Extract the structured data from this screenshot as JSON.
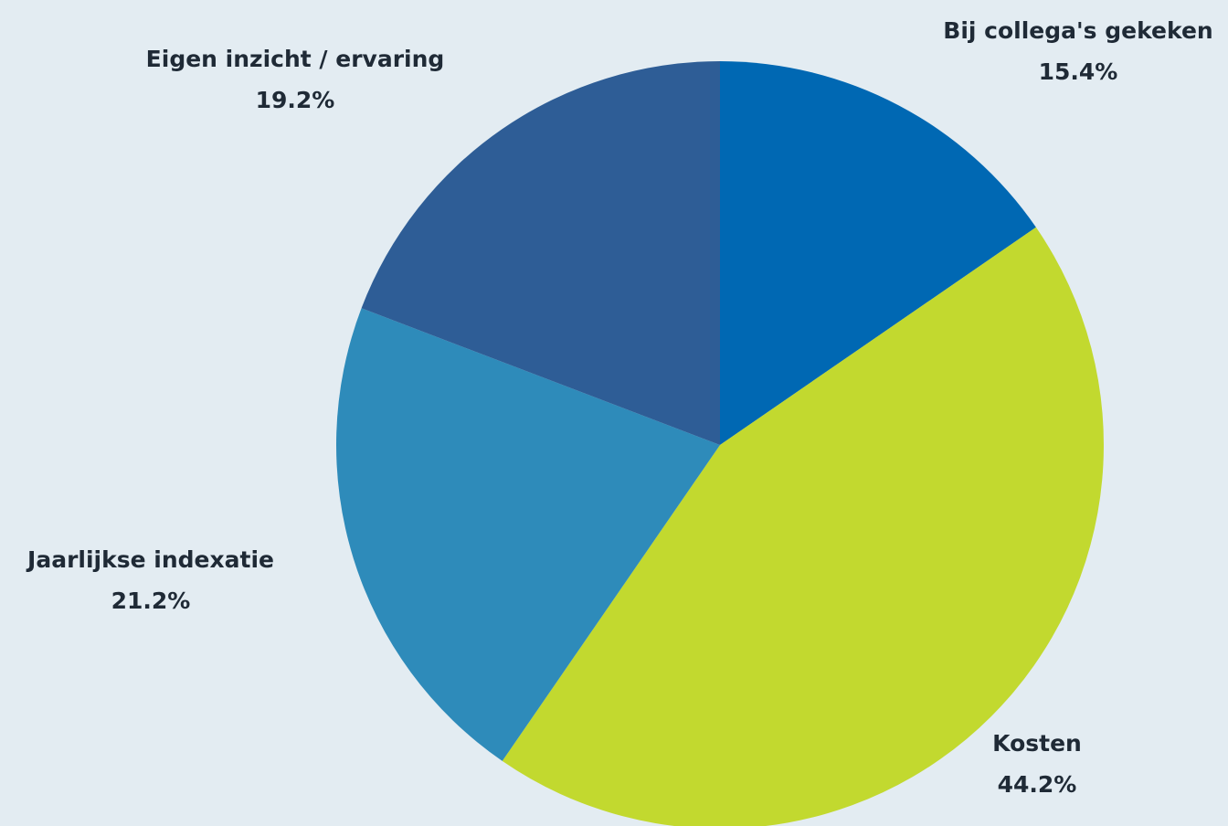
{
  "chart_data": {
    "type": "pie",
    "title": "",
    "slices": [
      {
        "label": "Bij collega's gekeken",
        "value": 15.4,
        "value_label": "15.4%",
        "color": "#0068b3"
      },
      {
        "label": "Kosten",
        "value": 44.2,
        "value_label": "44.2%",
        "color": "#c2d92f"
      },
      {
        "label": "Jaarlijkse indexatie",
        "value": 21.2,
        "value_label": "21.2%",
        "color": "#2e8bba"
      },
      {
        "label": "Eigen inzicht / ervaring",
        "value": 19.2,
        "value_label": "19.2%",
        "color": "#2e5d96"
      }
    ],
    "start_angle_deg": 0,
    "direction": "clockwise",
    "legend": "none"
  },
  "background_color": "#e3ecf2"
}
